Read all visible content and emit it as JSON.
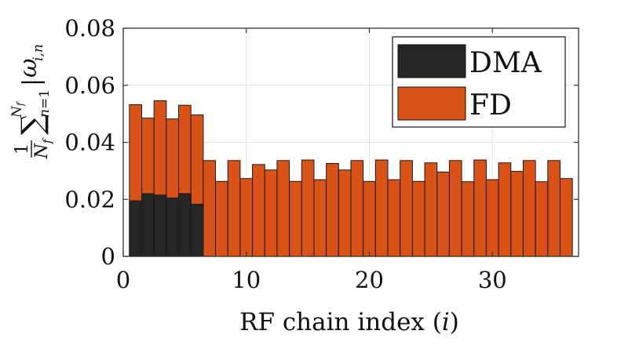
{
  "chart_data": {
    "type": "bar",
    "stacking": "overlay",
    "title": "",
    "xlabel_text": "RF chain index (",
    "xlabel_var": "i",
    "xlabel_close": ")",
    "ylabel": "(1/N_f) sum_{n=1}^{N_f} |omega_{i,n}|",
    "xlim": [
      0,
      37
    ],
    "ylim": [
      0,
      0.08
    ],
    "xticks": [
      0,
      10,
      20,
      30
    ],
    "yticks": [
      0,
      0.02,
      0.04,
      0.06,
      0.08
    ],
    "x_tick_labels": [
      "0",
      "10",
      "20",
      "30"
    ],
    "y_tick_labels": [
      "0",
      "0.02",
      "0.04",
      "0.06",
      "0.08"
    ],
    "grid": true,
    "legend_position": "top-right",
    "categories": [
      1,
      2,
      3,
      4,
      5,
      6,
      7,
      8,
      9,
      10,
      11,
      12,
      13,
      14,
      15,
      16,
      17,
      18,
      19,
      20,
      21,
      22,
      23,
      24,
      25,
      26,
      27,
      28,
      29,
      30,
      31,
      32,
      33,
      34,
      35,
      36
    ],
    "series": [
      {
        "name": "DMA",
        "color": "#262626",
        "x": [
          1,
          2,
          3,
          4,
          5,
          6
        ],
        "values": [
          0.0195,
          0.022,
          0.0215,
          0.0205,
          0.022,
          0.0183
        ]
      },
      {
        "name": "FD",
        "color": "#D95319",
        "x": [
          1,
          2,
          3,
          4,
          5,
          6,
          7,
          8,
          9,
          10,
          11,
          12,
          13,
          14,
          15,
          16,
          17,
          18,
          19,
          20,
          21,
          22,
          23,
          24,
          25,
          26,
          27,
          28,
          29,
          30,
          31,
          32,
          33,
          34,
          35,
          36
        ],
        "values": [
          0.0532,
          0.0485,
          0.0546,
          0.0482,
          0.053,
          0.0496,
          0.0336,
          0.0263,
          0.0336,
          0.0273,
          0.0322,
          0.0303,
          0.0336,
          0.0263,
          0.0338,
          0.0269,
          0.0326,
          0.0303,
          0.0336,
          0.0263,
          0.0338,
          0.0269,
          0.0336,
          0.0263,
          0.0328,
          0.0296,
          0.0336,
          0.0262,
          0.0338,
          0.0269,
          0.0328,
          0.0298,
          0.0336,
          0.0262,
          0.0336,
          0.0273
        ]
      }
    ]
  }
}
